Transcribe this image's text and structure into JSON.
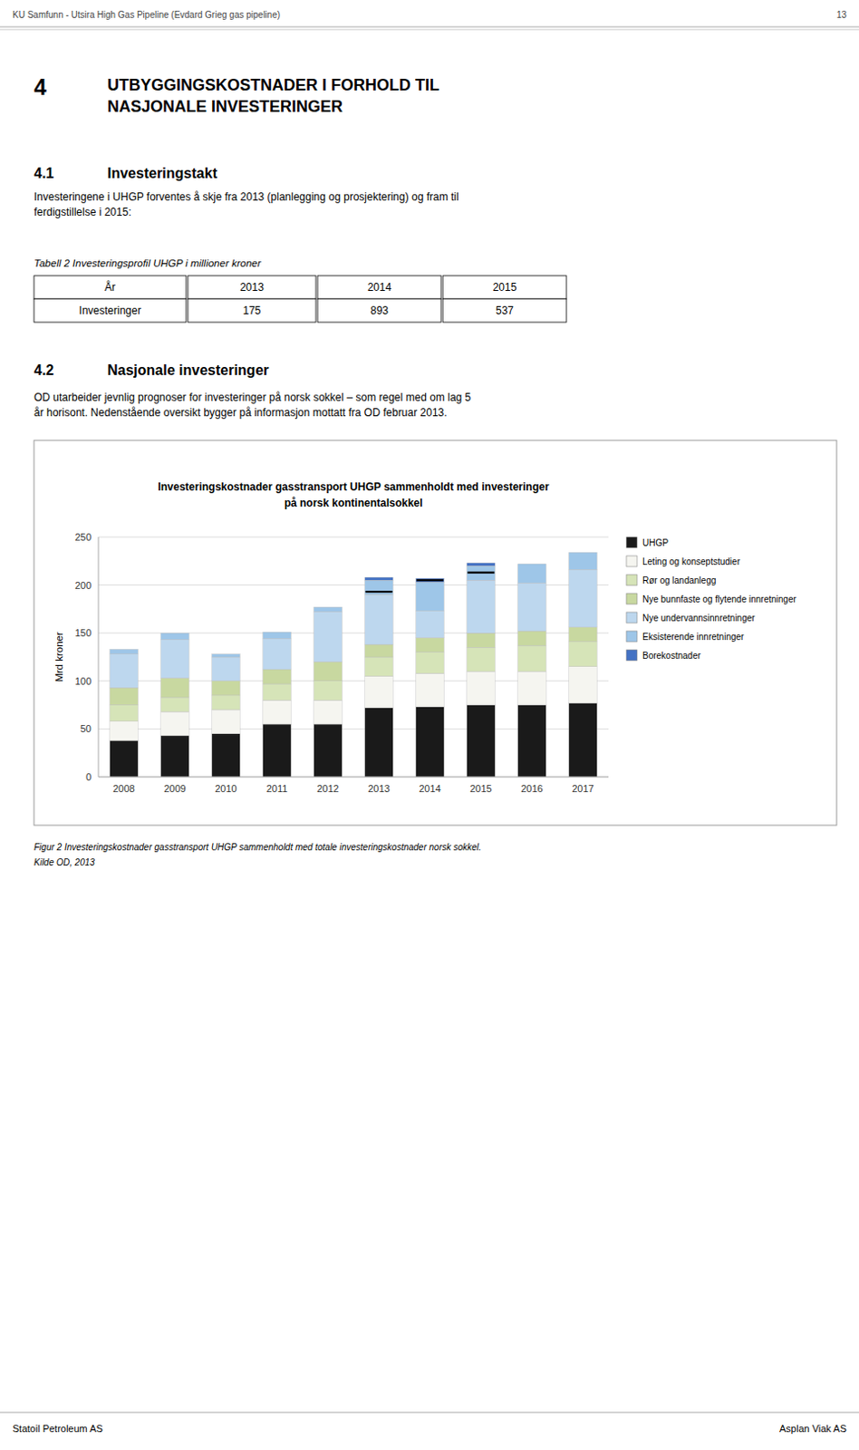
{
  "page": {
    "header": "KU Samfunn - Utsira High Gas Pipeline (Evdard Grieg gas pipeline)",
    "page_number": "13",
    "section_number": "4",
    "section_title": "UTBYGGINGSKOSTNADER I FORHOLD TIL\nNASJONALE INVESTERINGER",
    "subsection1_number": "4.1",
    "subsection1_title": "Investeringstakt",
    "subsection1_text": "Investeringene i UHGP forventes å skje fra 2013 (planlegging og prosjektering) og fram til\nferdigstillelse i 2015:",
    "table_caption": "Tabell 2 Investeringsprofil UHGP i millioner kroner",
    "table_headers": [
      "År",
      "2013",
      "2014",
      "2015"
    ],
    "table_row": [
      "Investeringer",
      "175",
      "893",
      "537"
    ],
    "subsection2_number": "4.2",
    "subsection2_title": "Nasjonale investeringer",
    "subsection2_text": "OD utarbeider jevnlig prognoser for investeringer på norsk sokkel – som regel med om lag 5\når horisont. Nedenstående oversikt bygger på informasjon mottatt fra OD februar 2013.",
    "figure_caption_line1": "Figur 2  Investeringskostnader gasstransport UHGP sammenholdt med totale investeringskostnader norsk sokkel.",
    "figure_caption_line2": "Kilde OD, 2013",
    "footer_left": "Statoil Petroleum AS",
    "footer_right": "Asplan Viak AS"
  },
  "chart_data": {
    "type": "bar",
    "stacked": true,
    "title": "Investeringskostnader gasstransport UHGP sammenholdt med investeringer\npå norsk kontinentalsokkel",
    "y_label": "Mrd kroner",
    "categories": [
      "2008",
      "2009",
      "2010",
      "2011",
      "2012",
      "2013",
      "2014",
      "2015",
      "2016",
      "2017"
    ],
    "series": [
      {
        "name": "UHGP",
        "color": "#1a1a1a",
        "values": [
          38,
          43,
          45,
          55,
          55,
          72,
          73,
          75,
          75,
          77
        ]
      },
      {
        "name": "Leting og konseptstudier",
        "color": "#f5f5f0",
        "values": [
          20,
          25,
          25,
          25,
          25,
          33,
          35,
          35,
          35,
          38
        ]
      },
      {
        "name": "Rør og landanlegg",
        "color": "#d6e4b8",
        "values": [
          17,
          15,
          15,
          17,
          20,
          20,
          22,
          25,
          27,
          26
        ]
      },
      {
        "name": "Nye bunnfaste og flytende innretninger",
        "color": "#c8d8a0",
        "values": [
          18,
          20,
          15,
          15,
          20,
          13,
          15,
          15,
          15,
          15
        ]
      },
      {
        "name": "Nye undervannsinnretninger",
        "color": "#bdd7ee",
        "values": [
          35,
          40,
          25,
          32,
          52,
          52,
          28,
          55,
          50,
          60
        ]
      },
      {
        "name": "Eksisterende innretninger",
        "color": "#9ec6e8",
        "values": [
          5,
          7,
          3,
          7,
          5,
          15,
          30,
          15,
          20,
          18
        ]
      },
      {
        "name": "Borekostnader",
        "color": "#4472c4",
        "values": [
          0,
          0,
          0,
          0,
          0,
          3,
          4,
          3,
          0,
          0
        ]
      }
    ],
    "forecast_values": [
      null,
      null,
      null,
      null,
      null,
      193,
      205,
      213,
      null,
      null
    ],
    "ylim": [
      0,
      250
    ],
    "yticks": [
      0,
      50,
      100,
      150,
      200,
      250
    ],
    "grid": true,
    "legend": "right"
  }
}
